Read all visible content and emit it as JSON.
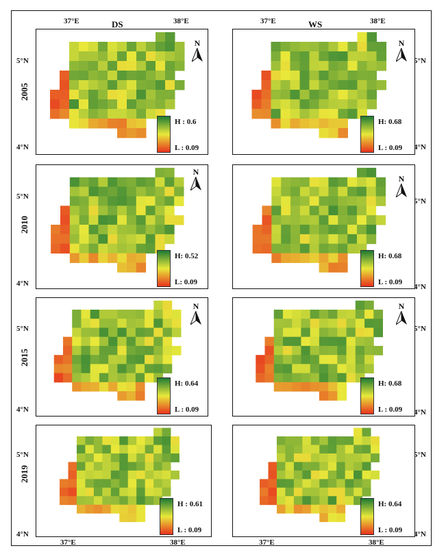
{
  "columns": [
    "DS",
    "WS"
  ],
  "rows": [
    {
      "year": "2005",
      "ds": {
        "high": "H : 0.6",
        "low": "L : 0.09"
      },
      "ws": {
        "high": "H: 0.68",
        "low": "L : 0.09"
      }
    },
    {
      "year": "2010",
      "ds": {
        "high": "H: 0.52",
        "low": "L: 0.09"
      },
      "ws": {
        "high": "H: 0.68",
        "low": "L : 0.09"
      }
    },
    {
      "year": "2015",
      "ds": {
        "high": "H: 0.64",
        "low": "L : 0.09"
      },
      "ws": {
        "high": "H: 0.68",
        "low": "L : 0.09"
      }
    },
    {
      "year": "2019",
      "ds": {
        "high": "H : 0.61",
        "low": "L : 0.09"
      },
      "ws": {
        "high": "H: 0.64",
        "low": "L : 0.09"
      }
    }
  ],
  "north_label": "N",
  "coords": {
    "lon_37": "37°E",
    "lon_38": "38°E",
    "lat_5": "5°N",
    "lat_4": "4°N"
  },
  "colors": {
    "high": "#1e7a34",
    "mid": "#e8e83a",
    "low": "#e8321e"
  }
}
